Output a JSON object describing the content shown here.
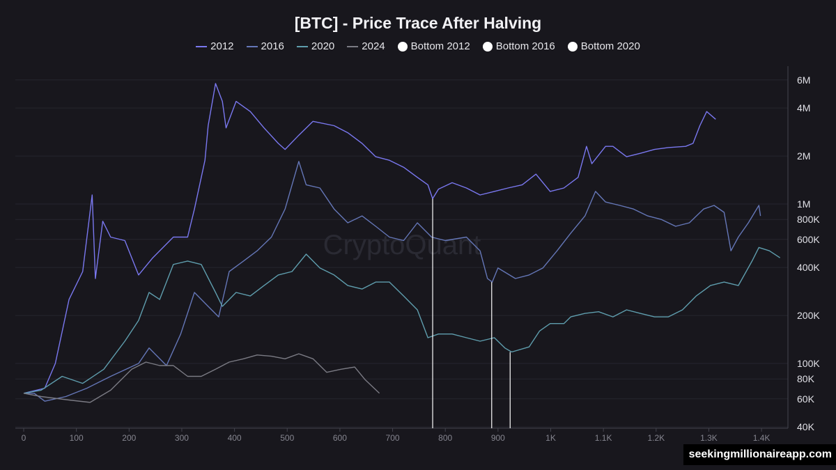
{
  "chart_data": {
    "type": "line",
    "title": "[BTC] - Price Trace After Halving",
    "watermark": "CryptoQuant",
    "xlabel": "",
    "ylabel": "",
    "xlim": [
      0,
      1450
    ],
    "ylim": [
      40000,
      7000000
    ],
    "yscale": "log",
    "grid": "horizontal",
    "legend_position": "top",
    "x_ticks": [
      0,
      100,
      200,
      300,
      400,
      500,
      600,
      700,
      800,
      900,
      1000,
      1100,
      1200,
      1300,
      1400
    ],
    "x_tick_labels": [
      "0",
      "100",
      "200",
      "300",
      "400",
      "500",
      "600",
      "700",
      "800",
      "900",
      "1K",
      "1.1K",
      "1.2K",
      "1.3K",
      "1.4K"
    ],
    "y_ticks": [
      40000,
      60000,
      80000,
      100000,
      200000,
      400000,
      600000,
      800000,
      1000000,
      2000000,
      4000000,
      6000000
    ],
    "y_tick_labels": [
      "40K",
      "60K",
      "80K",
      "100K",
      "200K",
      "400K",
      "600K",
      "800K",
      "1M",
      "2M",
      "4M",
      "6M"
    ],
    "series": [
      {
        "name": "2012",
        "color": "#7a78f0",
        "x": [
          0,
          40,
          60,
          86,
          112,
          130,
          136,
          150,
          165,
          192,
          218,
          245,
          284,
          311,
          324,
          344,
          350,
          364,
          377,
          384,
          403,
          430,
          456,
          483,
          496,
          522,
          549,
          589,
          615,
          642,
          668,
          694,
          721,
          747,
          767,
          776,
          787,
          813,
          840,
          866,
          893,
          919,
          946,
          972,
          999,
          1025,
          1052,
          1068,
          1078,
          1104,
          1118,
          1144,
          1170,
          1197,
          1223,
          1256,
          1270,
          1283,
          1296,
          1313
        ],
        "y": [
          65000,
          70000,
          100000,
          252000,
          377000,
          1140000,
          341000,
          780000,
          620000,
          590000,
          359000,
          460000,
          620000,
          620000,
          930000,
          1880000,
          3100000,
          5700000,
          4400000,
          3000000,
          4400000,
          3800000,
          3000000,
          2400000,
          2200000,
          2700000,
          3300000,
          3100000,
          2800000,
          2400000,
          1980000,
          1880000,
          1700000,
          1470000,
          1320000,
          1080000,
          1240000,
          1360000,
          1260000,
          1140000,
          1200000,
          1260000,
          1320000,
          1540000,
          1200000,
          1260000,
          1470000,
          2300000,
          1790000,
          2300000,
          2300000,
          1980000,
          2080000,
          2200000,
          2260000,
          2300000,
          2400000,
          3100000,
          3800000,
          3400000
        ]
      },
      {
        "name": "2016",
        "color": "#6577b8",
        "x": [
          0,
          20,
          40,
          80,
          120,
          165,
          218,
          238,
          271,
          298,
          324,
          350,
          370,
          390,
          417,
          443,
          470,
          496,
          522,
          536,
          562,
          589,
          615,
          642,
          668,
          694,
          721,
          747,
          774,
          800,
          840,
          866,
          880,
          889,
          900,
          933,
          959,
          985,
          1012,
          1038,
          1065,
          1085,
          1104,
          1131,
          1157,
          1184,
          1210,
          1237,
          1263,
          1290,
          1310,
          1329,
          1342,
          1356,
          1375,
          1395,
          1398
        ],
        "y": [
          65000,
          65000,
          58000,
          62000,
          70000,
          83000,
          100000,
          125000,
          97000,
          153000,
          279000,
          228000,
          196000,
          377000,
          439000,
          509000,
          620000,
          930000,
          1850000,
          1320000,
          1260000,
          930000,
          762000,
          842000,
          725000,
          620000,
          590000,
          762000,
          620000,
          590000,
          620000,
          509000,
          341000,
          324000,
          397000,
          341000,
          359000,
          397000,
          509000,
          656000,
          842000,
          1200000,
          1030000,
          980000,
          930000,
          842000,
          800000,
          725000,
          762000,
          930000,
          980000,
          886000,
          509000,
          620000,
          762000,
          980000,
          842000
        ]
      },
      {
        "name": "2020",
        "color": "#5f9eae",
        "x": [
          0,
          33,
          73,
          112,
          152,
          192,
          218,
          238,
          258,
          284,
          311,
          337,
          364,
          377,
          403,
          430,
          456,
          483,
          509,
          536,
          562,
          589,
          615,
          642,
          668,
          694,
          721,
          747,
          767,
          787,
          813,
          840,
          866,
          893,
          913,
          926,
          959,
          979,
          999,
          1025,
          1038,
          1065,
          1091,
          1118,
          1144,
          1170,
          1197,
          1223,
          1250,
          1276,
          1303,
          1329,
          1356,
          1382,
          1395,
          1415,
          1435
        ],
        "y": [
          65000,
          68000,
          83000,
          75000,
          92000,
          138000,
          186000,
          279000,
          252000,
          418000,
          439000,
          418000,
          279000,
          228000,
          279000,
          265000,
          308000,
          359000,
          377000,
          485000,
          397000,
          359000,
          308000,
          293000,
          324000,
          324000,
          265000,
          217000,
          145000,
          153000,
          153000,
          145000,
          138000,
          145000,
          125000,
          118000,
          127000,
          160000,
          178000,
          178000,
          196000,
          206000,
          211000,
          196000,
          217000,
          206000,
          196000,
          196000,
          217000,
          265000,
          308000,
          324000,
          308000,
          439000,
          534000,
          509000,
          460000
        ]
      },
      {
        "name": "2024",
        "color": "#7b7b84",
        "x": [
          0,
          33,
          86,
          126,
          165,
          205,
          232,
          258,
          284,
          311,
          337,
          364,
          390,
          417,
          443,
          470,
          496,
          522,
          549,
          575,
          602,
          628,
          648,
          675
        ],
        "y": [
          65000,
          62000,
          59000,
          57000,
          68000,
          92000,
          102000,
          97000,
          97000,
          83000,
          83000,
          92000,
          102000,
          107000,
          113000,
          111000,
          107000,
          115000,
          107000,
          88000,
          92000,
          95000,
          79000,
          65000
        ]
      }
    ],
    "bottom_markers": [
      {
        "name": "Bottom 2012",
        "x": 776,
        "y": 1080000,
        "color": "#ffffff"
      },
      {
        "name": "Bottom 2016",
        "x": 888,
        "y": 324000,
        "color": "#ffffff"
      },
      {
        "name": "Bottom 2020",
        "x": 923,
        "y": 118000,
        "color": "#ffffff"
      }
    ]
  },
  "credit": "seekingmillionaireapp.com"
}
